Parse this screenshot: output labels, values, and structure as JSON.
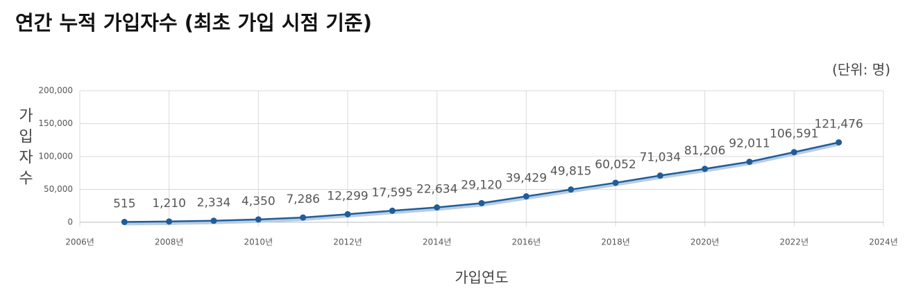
{
  "chart_data": {
    "type": "line",
    "title": "연간 누적 가입자수 (최초 가입 시점 기준)",
    "unit_label": "(단위: 명)",
    "x_label": "가입연도",
    "y_label": "가입자수",
    "x": [
      2007,
      2008,
      2009,
      2010,
      2011,
      2012,
      2013,
      2014,
      2015,
      2016,
      2017,
      2018,
      2019,
      2020,
      2021,
      2022,
      2023
    ],
    "values": [
      515,
      1210,
      2334,
      4350,
      7286,
      12299,
      17595,
      22634,
      29120,
      39429,
      49815,
      60052,
      71034,
      81206,
      92011,
      106591,
      121476
    ],
    "value_labels": [
      "515",
      "1,210",
      "2,334",
      "4,350",
      "7,286",
      "12,299",
      "17,595",
      "22,634",
      "29,120",
      "39,429",
      "49,815",
      "60,052",
      "71,034",
      "81,206",
      "92,011",
      "106,591",
      "121,476"
    ],
    "color": "#1f5c99",
    "xlim": [
      2006,
      2024
    ],
    "xticks": [
      {
        "value": 2006,
        "label": "2006년"
      },
      {
        "value": 2008,
        "label": "2008년"
      },
      {
        "value": 2010,
        "label": "2010년"
      },
      {
        "value": 2012,
        "label": "2012년"
      },
      {
        "value": 2014,
        "label": "2014년"
      },
      {
        "value": 2016,
        "label": "2016년"
      },
      {
        "value": 2018,
        "label": "2018년"
      },
      {
        "value": 2020,
        "label": "2020년"
      },
      {
        "value": 2022,
        "label": "2022년"
      },
      {
        "value": 2024,
        "label": "2024년"
      }
    ],
    "ylim": [
      0,
      200000
    ],
    "yticks": [
      0,
      {
        "value": 50000,
        "label": "50,000"
      },
      {
        "value": 100000,
        "label": "100,000"
      },
      {
        "value": 150000,
        "label": "150,000"
      },
      {
        "value": 200000,
        "label": "200,000"
      }
    ],
    "grid": true
  }
}
